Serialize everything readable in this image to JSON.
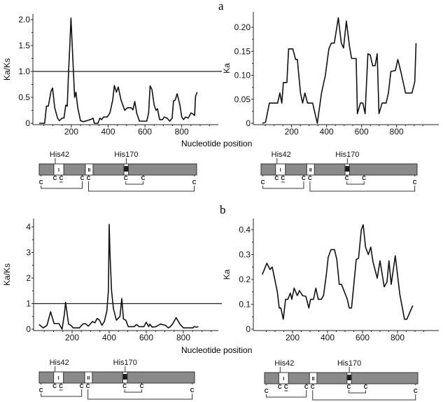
{
  "chart_data": [
    {
      "panel": "a",
      "type": "line",
      "ylabel": "Ka/Ks",
      "xlabel": "Nucleotide position",
      "xlim": [
        0,
        1000
      ],
      "ylim": [
        0,
        2.1
      ],
      "xticks": [
        "200",
        "400",
        "600",
        "800"
      ],
      "yticks": [
        "0",
        "0.5",
        "1.0",
        "1.5",
        "2.0"
      ],
      "reference_line": 1.0,
      "x": [
        25,
        55,
        65,
        75,
        90,
        98,
        110,
        125,
        135,
        150,
        160,
        170,
        178,
        185,
        193,
        198,
        205,
        212,
        218,
        225,
        235,
        250,
        265,
        285,
        310,
        318,
        325,
        345,
        355,
        365,
        375,
        395,
        410,
        425,
        434,
        445,
        455,
        470,
        490,
        505,
        525,
        535,
        545,
        555,
        570,
        610,
        620,
        628,
        638,
        650,
        660,
        668,
        680,
        695,
        705,
        720,
        735,
        748,
        755,
        765,
        775,
        790,
        800,
        810,
        820,
        835,
        850,
        860,
        870,
        875,
        884
      ],
      "y": [
        0,
        0,
        0.33,
        0.33,
        0.62,
        0.68,
        0.3,
        0.1,
        0.05,
        0.1,
        0.1,
        0.35,
        0.33,
        1.0,
        1.6,
        2.03,
        1.5,
        0.95,
        0.5,
        0.6,
        0.3,
        0.05,
        0.03,
        0.05,
        0.08,
        0.1,
        0,
        0,
        0.1,
        0.07,
        0.12,
        0.12,
        0.2,
        0.45,
        0.73,
        0.6,
        0.7,
        0.45,
        0.25,
        0.3,
        0.3,
        0.26,
        0.42,
        0.2,
        0.04,
        0.04,
        0.2,
        0.72,
        0.65,
        0.35,
        0.25,
        0.28,
        0.07,
        0.07,
        0.12,
        0.1,
        0.04,
        0.1,
        0.43,
        0.45,
        0.57,
        0.35,
        0.12,
        0.07,
        0.12,
        0.1,
        0.2,
        0.18,
        0.15,
        0.52,
        0.6
      ]
    },
    {
      "panel": "a",
      "type": "line",
      "ylabel": "Ka",
      "xlabel": "Nucleotide position",
      "xlim": [
        0,
        1000
      ],
      "ylim": [
        0,
        0.23
      ],
      "xticks": [
        "200",
        "400",
        "600",
        "800"
      ],
      "yticks": [
        "0",
        "0.05",
        "0.10",
        "0.15",
        "0.20"
      ],
      "x": [
        33,
        51,
        73,
        120,
        133,
        144,
        153,
        173,
        183,
        207,
        223,
        233,
        251,
        263,
        276,
        291,
        320,
        347,
        371,
        393,
        413,
        427,
        444,
        467,
        484,
        497,
        513,
        531,
        543,
        569,
        576,
        593,
        607,
        620,
        636,
        649,
        663,
        677,
        689,
        699,
        717,
        740,
        753,
        767,
        793,
        807,
        824,
        851,
        888,
        904,
        911
      ],
      "y": [
        0,
        0.002,
        0.042,
        0.042,
        0.063,
        0.042,
        0.085,
        0.085,
        0.155,
        0.155,
        0.133,
        0.133,
        0.063,
        0.042,
        0.063,
        0.042,
        0.042,
        0,
        0.063,
        0.1,
        0.155,
        0.167,
        0.167,
        0.22,
        0.167,
        0.157,
        0.213,
        0.16,
        0.135,
        0.135,
        0.02,
        0.042,
        0.042,
        0.02,
        0.145,
        0.142,
        0.12,
        0.12,
        0.145,
        0.02,
        0.042,
        0.042,
        0.063,
        0.108,
        0.11,
        0.133,
        0.108,
        0.063,
        0.063,
        0.087,
        0.167
      ]
    },
    {
      "panel": "b",
      "type": "line",
      "ylabel": "Ka/Ks",
      "xlabel": "Nucleotide position",
      "xlim": [
        0,
        1000
      ],
      "ylim": [
        0,
        4.3
      ],
      "xticks": [
        "200",
        "400",
        "600",
        "800"
      ],
      "yticks": [
        "0",
        "1",
        "2",
        "3",
        "4"
      ],
      "reference_line": 1,
      "x": [
        22,
        45,
        65,
        84,
        103,
        129,
        138,
        146,
        159,
        165,
        181,
        194,
        206,
        239,
        258,
        271,
        288,
        310,
        323,
        335,
        348,
        361,
        374,
        387,
        396,
        400,
        404,
        413,
        423,
        439,
        458,
        468,
        477,
        490,
        503,
        535,
        548,
        561,
        587,
        600,
        613,
        619,
        632,
        652,
        677,
        703,
        719,
        729,
        742,
        761,
        781,
        800,
        832,
        852,
        858,
        871,
        881
      ],
      "y": [
        0.18,
        0.05,
        0.15,
        0.68,
        0.22,
        0.22,
        0.1,
        0,
        0.6,
        1.05,
        0.2,
        0.15,
        0.05,
        0.05,
        0.2,
        0.22,
        0.12,
        0.3,
        0.25,
        0.42,
        0.35,
        0.15,
        0.3,
        0.7,
        1.5,
        4.1,
        3.0,
        1.5,
        0.8,
        0.35,
        0.5,
        1.2,
        0.4,
        0.35,
        0.1,
        0.1,
        0.18,
        0.1,
        0.1,
        0.27,
        0.1,
        0.2,
        0.08,
        0.1,
        0.2,
        0.15,
        0.05,
        0.1,
        0.2,
        0.45,
        0.2,
        0.05,
        0.05,
        0.05,
        0.1,
        0.08,
        0.1
      ]
    },
    {
      "panel": "b",
      "type": "line",
      "ylabel": "Ka",
      "xlabel": "Nucleotide position",
      "xlim": [
        0,
        1000
      ],
      "ylim": [
        0,
        0.44
      ],
      "xticks": [
        "200",
        "400",
        "600",
        "800"
      ],
      "yticks": [
        "0",
        "0.1",
        "0.2",
        "0.3",
        "0.4"
      ],
      "x": [
        27,
        53,
        71,
        84,
        113,
        124,
        133,
        147,
        160,
        173,
        187,
        196,
        209,
        227,
        240,
        257,
        276,
        293,
        303,
        320,
        333,
        347,
        364,
        377,
        393,
        404,
        420,
        440,
        453,
        467,
        480,
        513,
        524,
        537,
        553,
        564,
        577,
        593,
        604,
        617,
        633,
        647,
        660,
        684,
        700,
        724,
        740,
        751,
        764,
        787,
        813,
        840,
        853,
        887
      ],
      "y": [
        0.22,
        0.265,
        0.24,
        0.25,
        0.15,
        0.085,
        0.085,
        0.04,
        0.12,
        0.12,
        0.145,
        0.12,
        0.165,
        0.135,
        0.155,
        0.135,
        0.132,
        0.085,
        0.12,
        0.12,
        0.165,
        0.12,
        0.12,
        0.135,
        0.22,
        0.29,
        0.32,
        0.32,
        0.28,
        0.18,
        0.18,
        0.12,
        0.085,
        0.085,
        0.2,
        0.28,
        0.285,
        0.4,
        0.42,
        0.33,
        0.3,
        0.33,
        0.27,
        0.205,
        0.275,
        0.17,
        0.19,
        0.275,
        0.18,
        0.295,
        0.14,
        0.04,
        0.04,
        0.095
      ]
    }
  ],
  "panel_labels": {
    "a": "a",
    "b": "b"
  },
  "xaxis_title": "Nucleotide position",
  "gene_map": {
    "his42": "His42",
    "his170": "His170",
    "box_labels": [
      "I",
      "II",
      "III"
    ],
    "cys": "C",
    "bar_color": "#8a8a8a"
  }
}
